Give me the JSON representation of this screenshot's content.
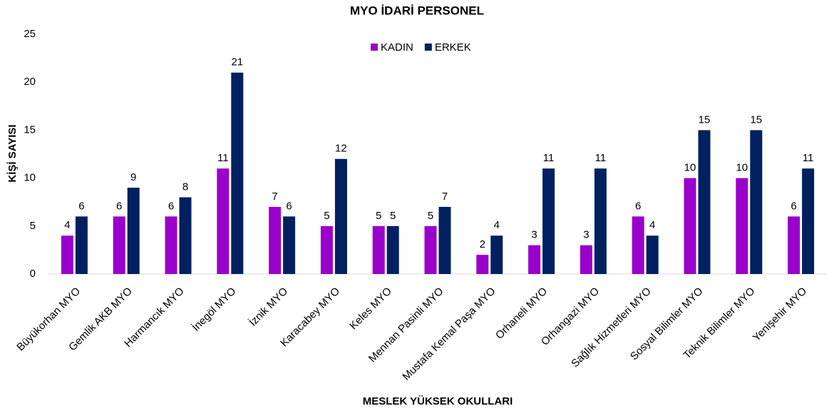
{
  "chart_data": {
    "type": "bar",
    "title": "MYO İDARİ PERSONEL",
    "y_label": "KİŞİ SAYISI",
    "x_label": "MESLEK YÜKSEK OKULLARI",
    "categories": [
      "Büyükorhan MYO",
      "Gemlik AKB MYO",
      "Harmancık MYO",
      "İnegöl MYO",
      "İznik MYO",
      "Karacabey MYO",
      "Keles MYO",
      "Mennan Pasinli MYO",
      "Mustafa Kemal Paşa MYO",
      "Orhaneli MYO",
      "Orhangazi MYO",
      "Sağlık Hizmetleri MYO",
      "Sosyal Bilimler MYO",
      "Teknik Bilimler MYO",
      "Yenişehir MYO"
    ],
    "series": [
      {
        "name": "KADIN",
        "color": "#9900cc",
        "values": [
          4,
          6,
          6,
          11,
          7,
          5,
          5,
          5,
          2,
          3,
          3,
          6,
          10,
          10,
          6
        ]
      },
      {
        "name": "ERKEK",
        "color": "#002060",
        "values": [
          6,
          9,
          8,
          21,
          6,
          12,
          5,
          7,
          4,
          11,
          11,
          4,
          15,
          15,
          11
        ]
      }
    ],
    "ylim": [
      0,
      25
    ],
    "yticks": [
      0,
      5,
      10,
      15,
      20,
      25
    ],
    "grid": false,
    "legend": "top"
  }
}
